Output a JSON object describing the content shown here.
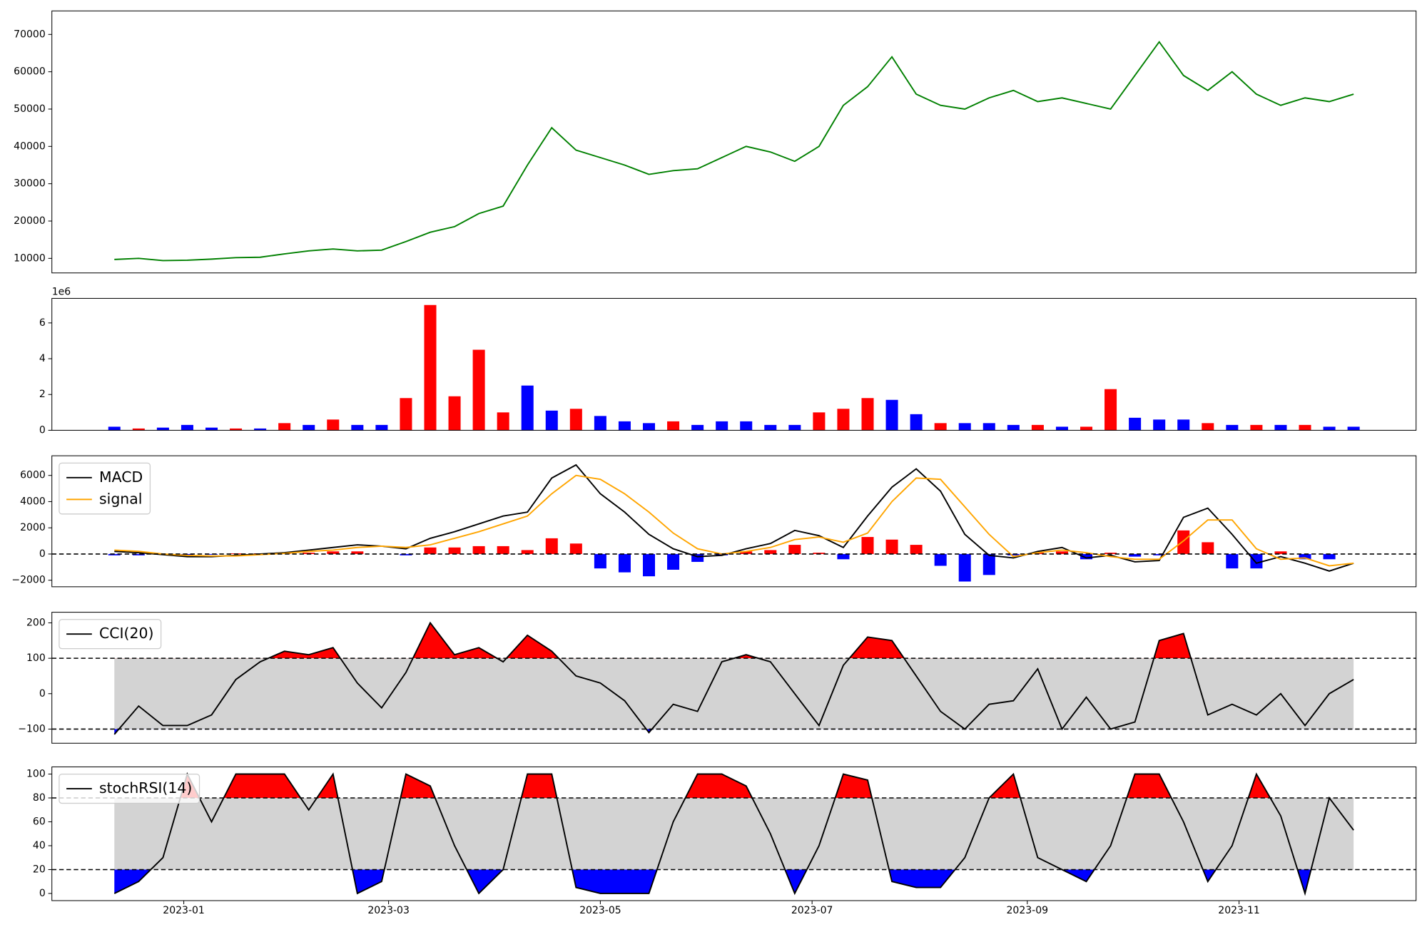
{
  "chart_data": [
    {
      "type": "line",
      "x": [
        19338,
        19345,
        19352,
        19359,
        19366,
        19373,
        19380,
        19387,
        19394,
        19401,
        19408,
        19415,
        19422,
        19429,
        19436,
        19443,
        19450,
        19457,
        19464,
        19471,
        19478,
        19485,
        19492,
        19499,
        19506,
        19513,
        19520,
        19527,
        19534,
        19541,
        19548,
        19555,
        19562,
        19569,
        19576,
        19583,
        19590,
        19597,
        19604,
        19611,
        19618,
        19625,
        19632,
        19639,
        19646,
        19653,
        19660,
        19667,
        19674,
        19681,
        19688,
        19695
      ],
      "xlim": [
        19320,
        19713
      ],
      "series": [
        {
          "color": "green",
          "values": [
            9700,
            10000,
            9400,
            9500,
            9800,
            10200,
            10300,
            11200,
            12000,
            12500,
            12000,
            12200,
            14500,
            17000,
            18500,
            22000,
            24000,
            35000,
            45000,
            39000,
            37000,
            35000,
            32500,
            33500,
            34000,
            37000,
            40000,
            38500,
            36000,
            40000,
            51000,
            56000,
            64000,
            54000,
            51000,
            50000,
            53000,
            55000,
            52000,
            53000,
            51500,
            50000,
            59000,
            68000,
            59000,
            55000,
            60000,
            54000,
            51000,
            53000,
            52000,
            54000
          ]
        }
      ],
      "ylim": [
        6100,
        76300
      ],
      "yticks": [
        10000,
        20000,
        30000,
        40000,
        50000,
        60000,
        70000
      ]
    },
    {
      "type": "bar",
      "x": [
        19338,
        19345,
        19352,
        19359,
        19366,
        19373,
        19380,
        19387,
        19394,
        19401,
        19408,
        19415,
        19422,
        19429,
        19436,
        19443,
        19450,
        19457,
        19464,
        19471,
        19478,
        19485,
        19492,
        19499,
        19506,
        19513,
        19520,
        19527,
        19534,
        19541,
        19548,
        19555,
        19562,
        19569,
        19576,
        19583,
        19590,
        19597,
        19604,
        19611,
        19618,
        19625,
        19632,
        19639,
        19646,
        19653,
        19660,
        19667,
        19674,
        19681,
        19688,
        19695
      ],
      "xlim": [
        19320,
        19713
      ],
      "values": [
        200000,
        100000,
        150000,
        300000,
        150000,
        100000,
        100000,
        400000,
        300000,
        600000,
        300000,
        300000,
        1800000,
        7000000,
        1900000,
        4500000,
        1000000,
        2500000,
        1100000,
        1200000,
        800000,
        500000,
        400000,
        500000,
        300000,
        500000,
        500000,
        300000,
        300000,
        1000000,
        1200000,
        1800000,
        1700000,
        900000,
        400000,
        400000,
        400000,
        300000,
        300000,
        200000,
        200000,
        2300000,
        700000,
        600000,
        600000,
        400000,
        300000,
        300000,
        300000,
        300000,
        200000,
        200000
      ],
      "colors": [
        "blue",
        "red",
        "blue",
        "blue",
        "blue",
        "red",
        "blue",
        "red",
        "blue",
        "red",
        "blue",
        "blue",
        "red",
        "red",
        "red",
        "red",
        "red",
        "blue",
        "blue",
        "red",
        "blue",
        "blue",
        "blue",
        "red",
        "blue",
        "blue",
        "blue",
        "blue",
        "blue",
        "red",
        "red",
        "red",
        "blue",
        "blue",
        "red",
        "blue",
        "blue",
        "blue",
        "red",
        "blue",
        "red",
        "red",
        "blue",
        "blue",
        "blue",
        "red",
        "blue",
        "red",
        "blue",
        "red",
        "blue",
        "blue"
      ],
      "ylim": [
        0,
        7370000
      ],
      "yticks": [
        0,
        {
          "value": 2000000,
          "label": "2"
        },
        {
          "value": 4000000,
          "label": "4"
        },
        {
          "value": 6000000,
          "label": "6"
        }
      ],
      "offset_label": "1e6"
    },
    {
      "type": "macd",
      "x": [
        19338,
        19345,
        19352,
        19359,
        19366,
        19373,
        19380,
        19387,
        19394,
        19401,
        19408,
        19415,
        19422,
        19429,
        19436,
        19443,
        19450,
        19457,
        19464,
        19471,
        19478,
        19485,
        19492,
        19499,
        19506,
        19513,
        19520,
        19527,
        19534,
        19541,
        19548,
        19555,
        19562,
        19569,
        19576,
        19583,
        19590,
        19597,
        19604,
        19611,
        19618,
        19625,
        19632,
        19639,
        19646,
        19653,
        19660,
        19667,
        19674,
        19681,
        19688,
        19695
      ],
      "xlim": [
        19320,
        19713
      ],
      "series": [
        {
          "name": "MACD",
          "color": "black",
          "values": [
            200,
            100,
            -50,
            -200,
            -200,
            -100,
            0,
            100,
            300,
            500,
            700,
            600,
            400,
            1200,
            1700,
            2300,
            2900,
            3200,
            5800,
            6800,
            4600,
            3200,
            1500,
            400,
            -200,
            -100,
            400,
            800,
            1800,
            1400,
            500,
            2900,
            5100,
            6500,
            4800,
            1500,
            -100,
            -300,
            200,
            500,
            -300,
            -100,
            -600,
            -500,
            2800,
            3500,
            1500,
            -700,
            -200,
            -700,
            -1300,
            -700
          ]
        },
        {
          "name": "signal",
          "color": "orange",
          "values": [
            300,
            200,
            0,
            -100,
            -150,
            -150,
            -50,
            50,
            200,
            300,
            500,
            600,
            500,
            700,
            1200,
            1700,
            2300,
            2900,
            4600,
            6000,
            5700,
            4600,
            3200,
            1600,
            400,
            0,
            200,
            500,
            1100,
            1300,
            900,
            1600,
            4000,
            5800,
            5700,
            3600,
            1500,
            -200,
            100,
            300,
            100,
            -200,
            -400,
            -400,
            1000,
            2600,
            2600,
            400,
            -400,
            -300,
            -900,
            -700
          ]
        }
      ],
      "histogram": {
        "pos_color": "red",
        "neg_color": "blue",
        "values": [
          -100,
          -100,
          -50,
          -100,
          -50,
          50,
          50,
          50,
          100,
          200,
          200,
          0,
          -100,
          500,
          500,
          600,
          600,
          300,
          1200,
          800,
          -1100,
          -1400,
          -1700,
          -1200,
          -600,
          -100,
          200,
          300,
          700,
          100,
          -400,
          1300,
          1100,
          700,
          -900,
          -2100,
          -1600,
          -100,
          100,
          200,
          -400,
          100,
          -200,
          -100,
          1800,
          900,
          -1100,
          -1100,
          200,
          -400,
          -400,
          0
        ]
      },
      "hlines": [
        0
      ],
      "ylim": [
        -2500,
        7500
      ],
      "yticks": [
        {
          "value": -2000,
          "label": "−2000"
        },
        0,
        2000,
        4000,
        6000
      ],
      "legend": "upper left"
    },
    {
      "type": "band",
      "x": [
        19338,
        19345,
        19352,
        19359,
        19366,
        19373,
        19380,
        19387,
        19394,
        19401,
        19408,
        19415,
        19422,
        19429,
        19436,
        19443,
        19450,
        19457,
        19464,
        19471,
        19478,
        19485,
        19492,
        19499,
        19506,
        19513,
        19520,
        19527,
        19534,
        19541,
        19548,
        19555,
        19562,
        19569,
        19576,
        19583,
        19590,
        19597,
        19604,
        19611,
        19618,
        19625,
        19632,
        19639,
        19646,
        19653,
        19660,
        19667,
        19674,
        19681,
        19688,
        19695
      ],
      "xlim": [
        19320,
        19713
      ],
      "series": [
        {
          "name": "CCI(20)",
          "color": "black",
          "values": [
            -115,
            -35,
            -90,
            -90,
            -60,
            40,
            90,
            120,
            110,
            130,
            30,
            -40,
            60,
            200,
            110,
            130,
            90,
            165,
            120,
            50,
            30,
            -20,
            -110,
            -30,
            -50,
            90,
            110,
            90,
            0,
            -90,
            80,
            160,
            150,
            50,
            -50,
            -100,
            -30,
            -20,
            70,
            -100,
            -10,
            -100,
            -80,
            150,
            170,
            -60,
            -30,
            -60,
            0,
            -90,
            0,
            40
          ]
        }
      ],
      "bands": [
        -100,
        100
      ],
      "band_color": "lightgray",
      "upper_color": "red",
      "lower_color": "blue",
      "ylim": [
        -140,
        230
      ],
      "yticks": [
        {
          "value": -100,
          "label": "−100"
        },
        0,
        100,
        200
      ],
      "legend": "upper left"
    },
    {
      "type": "band",
      "x": [
        19338,
        19345,
        19352,
        19359,
        19366,
        19373,
        19380,
        19387,
        19394,
        19401,
        19408,
        19415,
        19422,
        19429,
        19436,
        19443,
        19450,
        19457,
        19464,
        19471,
        19478,
        19485,
        19492,
        19499,
        19506,
        19513,
        19520,
        19527,
        19534,
        19541,
        19548,
        19555,
        19562,
        19569,
        19576,
        19583,
        19590,
        19597,
        19604,
        19611,
        19618,
        19625,
        19632,
        19639,
        19646,
        19653,
        19660,
        19667,
        19674,
        19681,
        19688,
        19695
      ],
      "xlim": [
        19320,
        19713
      ],
      "series": [
        {
          "name": "stochRSI(14)",
          "color": "black",
          "values": [
            0,
            10,
            30,
            100,
            60,
            100,
            100,
            100,
            70,
            100,
            0,
            10,
            100,
            90,
            40,
            0,
            20,
            100,
            100,
            5,
            0,
            0,
            0,
            60,
            100,
            100,
            90,
            50,
            0,
            40,
            100,
            95,
            10,
            5,
            5,
            30,
            80,
            100,
            30,
            20,
            10,
            40,
            100,
            100,
            60,
            10,
            40,
            100,
            65,
            0,
            80,
            53
          ]
        }
      ],
      "bands": [
        20,
        80
      ],
      "band_color": "lightgray",
      "upper_color": "red",
      "lower_color": "blue",
      "ylim": [
        -6,
        106
      ],
      "yticks": [
        0,
        20,
        40,
        60,
        80,
        100
      ],
      "xticks": [
        {
          "value": 19358,
          "label": "2023-01"
        },
        {
          "value": 19417,
          "label": "2023-03"
        },
        {
          "value": 19478,
          "label": "2023-05"
        },
        {
          "value": 19539,
          "label": "2023-07"
        },
        {
          "value": 19601,
          "label": "2023-09"
        },
        {
          "value": 19662,
          "label": "2023-11"
        }
      ],
      "legend": "upper left"
    }
  ]
}
